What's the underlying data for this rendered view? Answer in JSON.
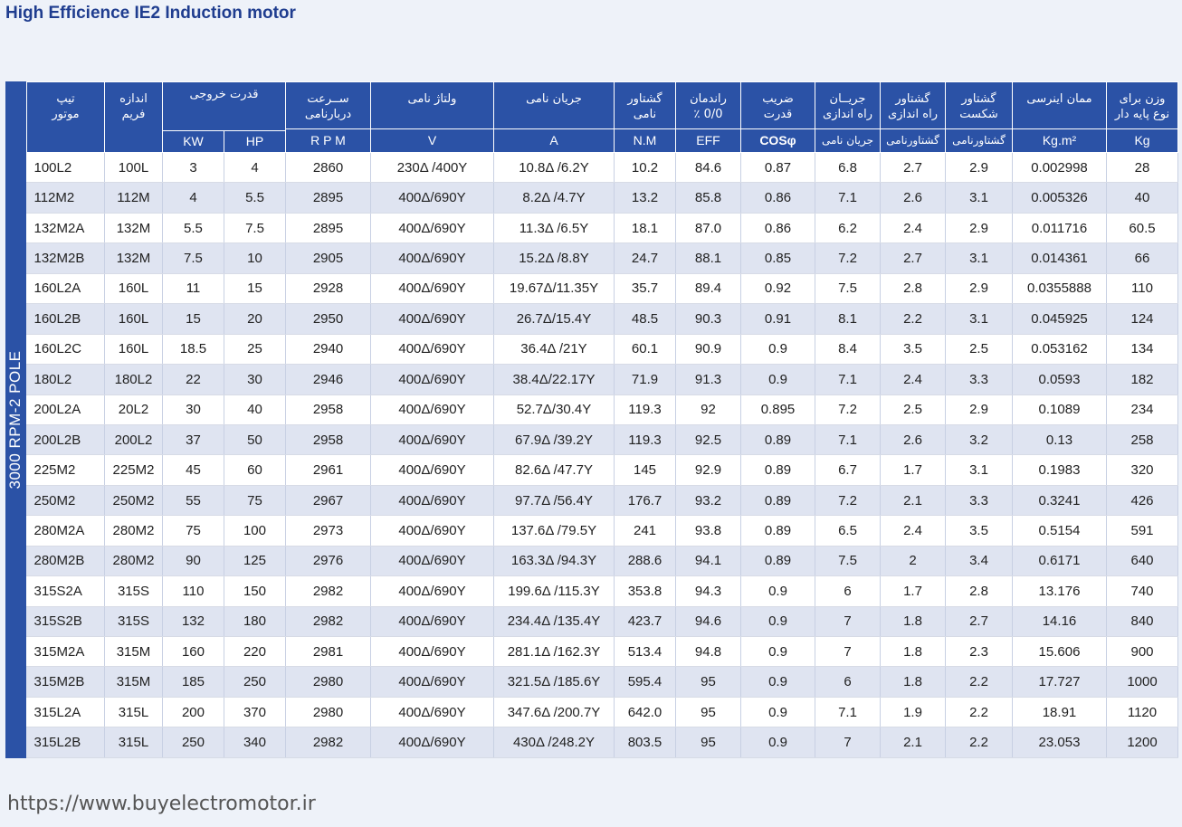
{
  "title": "High Efficience IE2 Induction motor",
  "side_label": "3000 RPM-2 POLE",
  "headers": {
    "type": "تیپ\nموتور",
    "frame": "اندازه\nفریم",
    "output": "قدرت خروجی",
    "kw": "KW",
    "hp": "HP",
    "speed": "ســرعت\nدربارنامی",
    "speed_unit": "R P M",
    "voltage": "ولتاژ نامی",
    "voltage_unit": "V",
    "current": "جریان نامی",
    "current_unit": "A",
    "torque": "گشتاور\nنامی",
    "torque_unit": "N.M",
    "eff": "راندمان\n٪ 0/0",
    "eff_unit": "EFF",
    "pf": "ضریب\nقدرت",
    "pf_unit": "COSφ",
    "start_current": "جریــان\nراه اندازی",
    "start_current_unit": "جریان نامی",
    "start_torque": "گشتاور\nراه اندازی",
    "start_torque_unit": "گشتاورنامی",
    "break_torque": "گشتاور\nشکست",
    "break_torque_unit": "گشتاورنامی",
    "inertia": "ممان اینرسی",
    "inertia_unit": "Kg.m²",
    "weight": "وزن برای\nنوع پایه دار",
    "weight_unit": "Kg"
  },
  "rows": [
    [
      "100L2",
      "100L",
      "3",
      "4",
      "2860",
      "230Δ /400Y",
      "10.8Δ /6.2Y",
      "10.2",
      "84.6",
      "0.87",
      "6.8",
      "2.7",
      "2.9",
      "0.002998",
      "28"
    ],
    [
      "112M2",
      "112M",
      "4",
      "5.5",
      "2895",
      "400Δ/690Y",
      "8.2Δ /4.7Y",
      "13.2",
      "85.8",
      "0.86",
      "7.1",
      "2.6",
      "3.1",
      "0.005326",
      "40"
    ],
    [
      "132M2A",
      "132M",
      "5.5",
      "7.5",
      "2895",
      "400Δ/690Y",
      "11.3Δ /6.5Y",
      "18.1",
      "87.0",
      "0.86",
      "6.2",
      "2.4",
      "2.9",
      "0.011716",
      "60.5"
    ],
    [
      "132M2B",
      "132M",
      "7.5",
      "10",
      "2905",
      "400Δ/690Y",
      "15.2Δ /8.8Y",
      "24.7",
      "88.1",
      "0.85",
      "7.2",
      "2.7",
      "3.1",
      "0.014361",
      "66"
    ],
    [
      "160L2A",
      "160L",
      "11",
      "15",
      "2928",
      "400Δ/690Y",
      "19.67Δ/11.35Y",
      "35.7",
      "89.4",
      "0.92",
      "7.5",
      "2.8",
      "2.9",
      "0.0355888",
      "110"
    ],
    [
      "160L2B",
      "160L",
      "15",
      "20",
      "2950",
      "400Δ/690Y",
      "26.7Δ/15.4Y",
      "48.5",
      "90.3",
      "0.91",
      "8.1",
      "2.2",
      "3.1",
      "0.045925",
      "124"
    ],
    [
      "160L2C",
      "160L",
      "18.5",
      "25",
      "2940",
      "400Δ/690Y",
      "36.4Δ /21Y",
      "60.1",
      "90.9",
      "0.9",
      "8.4",
      "3.5",
      "2.5",
      "0.053162",
      "134"
    ],
    [
      "180L2",
      "180L2",
      "22",
      "30",
      "2946",
      "400Δ/690Y",
      "38.4Δ/22.17Y",
      "71.9",
      "91.3",
      "0.9",
      "7.1",
      "2.4",
      "3.3",
      "0.0593",
      "182"
    ],
    [
      "200L2A",
      "20L2",
      "30",
      "40",
      "2958",
      "400Δ/690Y",
      "52.7Δ/30.4Y",
      "119.3",
      "92",
      "0.895",
      "7.2",
      "2.5",
      "2.9",
      "0.1089",
      "234"
    ],
    [
      "200L2B",
      "200L2",
      "37",
      "50",
      "2958",
      "400Δ/690Y",
      "67.9Δ /39.2Y",
      "119.3",
      "92.5",
      "0.89",
      "7.1",
      "2.6",
      "3.2",
      "0.13",
      "258"
    ],
    [
      "225M2",
      "225M2",
      "45",
      "60",
      "2961",
      "400Δ/690Y",
      "82.6Δ /47.7Y",
      "145",
      "92.9",
      "0.89",
      "6.7",
      "1.7",
      "3.1",
      "0.1983",
      "320"
    ],
    [
      "250M2",
      "250M2",
      "55",
      "75",
      "2967",
      "400Δ/690Y",
      "97.7Δ /56.4Y",
      "176.7",
      "93.2",
      "0.89",
      "7.2",
      "2.1",
      "3.3",
      "0.3241",
      "426"
    ],
    [
      "280M2A",
      "280M2",
      "75",
      "100",
      "2973",
      "400Δ/690Y",
      "137.6Δ /79.5Y",
      "241",
      "93.8",
      "0.89",
      "6.5",
      "2.4",
      "3.5",
      "0.5154",
      "591"
    ],
    [
      "280M2B",
      "280M2",
      "90",
      "125",
      "2976",
      "400Δ/690Y",
      "163.3Δ /94.3Y",
      "288.6",
      "94.1",
      "0.89",
      "7.5",
      "2",
      "3.4",
      "0.6171",
      "640"
    ],
    [
      "315S2A",
      "315S",
      "110",
      "150",
      "2982",
      "400Δ/690Y",
      "199.6Δ /115.3Y",
      "353.8",
      "94.3",
      "0.9",
      "6",
      "1.7",
      "2.8",
      "13.176",
      "740"
    ],
    [
      "315S2B",
      "315S",
      "132",
      "180",
      "2982",
      "400Δ/690Y",
      "234.4Δ /135.4Y",
      "423.7",
      "94.6",
      "0.9",
      "7",
      "1.8",
      "2.7",
      "14.16",
      "840"
    ],
    [
      "315M2A",
      "315M",
      "160",
      "220",
      "2981",
      "400Δ/690Y",
      "281.1Δ /162.3Y",
      "513.4",
      "94.8",
      "0.9",
      "7",
      "1.8",
      "2.3",
      "15.606",
      "900"
    ],
    [
      "315M2B",
      "315M",
      "185",
      "250",
      "2980",
      "400Δ/690Y",
      "321.5Δ /185.6Y",
      "595.4",
      "95",
      "0.9",
      "6",
      "1.8",
      "2.2",
      "17.727",
      "1000"
    ],
    [
      "315L2A",
      "315L",
      "200",
      "370",
      "2980",
      "400Δ/690Y",
      "347.6Δ /200.7Y",
      "642.0",
      "95",
      "0.9",
      "7.1",
      "1.9",
      "2.2",
      "18.91",
      "1120"
    ],
    [
      "315L2B",
      "315L",
      "250",
      "340",
      "2982",
      "400Δ/690Y",
      "430Δ /248.2Y",
      "803.5",
      "95",
      "0.9",
      "7",
      "2.1",
      "2.2",
      "23.053",
      "1200"
    ]
  ],
  "footer_url": "https://www.buyelectromotor.ir"
}
